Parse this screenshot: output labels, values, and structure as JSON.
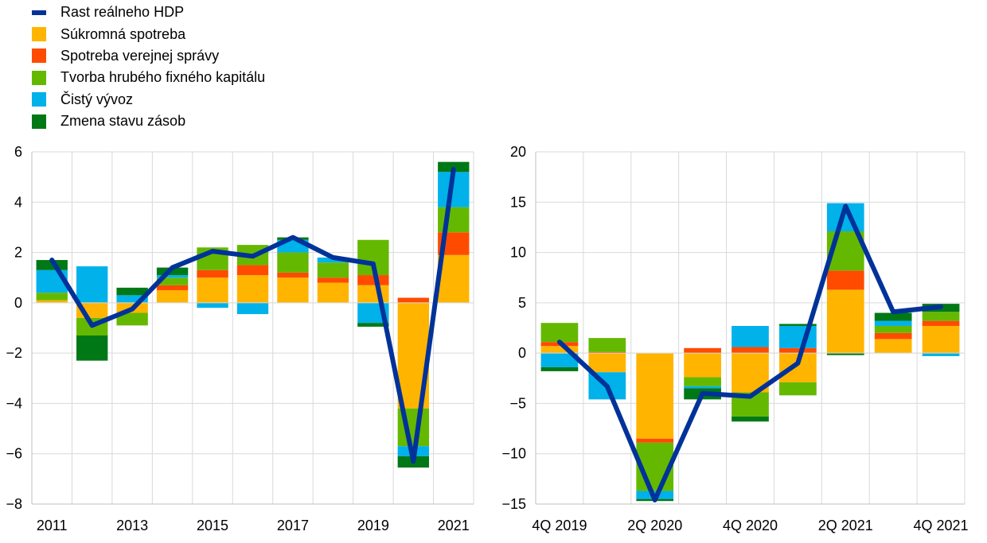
{
  "legend": {
    "items": [
      {
        "label": "Rast reálneho HDP",
        "color": "#003299",
        "kind": "line"
      },
      {
        "label": "Súkromná spotreba",
        "color": "#FFB400",
        "kind": "bar"
      },
      {
        "label": "Spotreba verejnej správy",
        "color": "#FF4B00",
        "kind": "bar"
      },
      {
        "label": "Tvorba hrubého fixného kapitálu",
        "color": "#65B800",
        "kind": "bar"
      },
      {
        "label": "Čistý vývoz",
        "color": "#00B1EA",
        "kind": "bar"
      },
      {
        "label": "Zmena stavu zásob",
        "color": "#007816",
        "kind": "bar"
      }
    ]
  },
  "chart_data": [
    {
      "type": "bar",
      "stacked": true,
      "categories": [
        "2011",
        "2012",
        "2013",
        "2014",
        "2015",
        "2016",
        "2017",
        "2018",
        "2019",
        "2020",
        "2021"
      ],
      "x_tick_labels": [
        "2011",
        "2013",
        "2015",
        "2017",
        "2019",
        "2021"
      ],
      "ylim": [
        -8,
        6
      ],
      "y_ticks": [
        -8,
        -6,
        -4,
        -2,
        0,
        2,
        4,
        6
      ],
      "grid": true,
      "series": [
        {
          "name": "Súkromná spotreba",
          "color": "#FFB400",
          "values": [
            0.1,
            -0.6,
            -0.4,
            0.5,
            1.0,
            1.1,
            1.0,
            0.8,
            0.7,
            -4.2,
            1.9
          ]
        },
        {
          "name": "Spotreba verejnej správy",
          "color": "#FF4B00",
          "values": [
            0.0,
            0.0,
            0.0,
            0.2,
            0.3,
            0.4,
            0.2,
            0.2,
            0.4,
            0.2,
            0.9
          ]
        },
        {
          "name": "Tvorba hrubého fixného kapitálu",
          "color": "#65B800",
          "values": [
            0.3,
            -0.7,
            -0.5,
            0.3,
            0.9,
            0.8,
            0.8,
            0.6,
            1.4,
            -1.5,
            1.0
          ]
        },
        {
          "name": "Čistý vývoz",
          "color": "#00B1EA",
          "values": [
            0.9,
            1.45,
            0.3,
            0.1,
            -0.2,
            -0.45,
            0.5,
            0.2,
            -0.8,
            -0.4,
            1.4
          ]
        },
        {
          "name": "Zmena stavu zásob",
          "color": "#007816",
          "values": [
            0.4,
            -1.0,
            0.3,
            0.3,
            0.0,
            0.0,
            0.1,
            0.0,
            -0.15,
            -0.45,
            0.4
          ]
        }
      ],
      "line": {
        "name": "Rast reálneho HDP",
        "color": "#003299",
        "values": [
          1.7,
          -0.9,
          -0.25,
          1.4,
          2.05,
          1.85,
          2.6,
          1.8,
          1.55,
          -6.3,
          5.3
        ]
      }
    },
    {
      "type": "bar",
      "stacked": true,
      "categories": [
        "4Q 2019",
        "1Q 2020",
        "2Q 2020",
        "3Q 2020",
        "4Q 2020",
        "1Q 2021",
        "2Q 2021",
        "3Q 2021",
        "4Q 2021"
      ],
      "x_tick_labels": [
        "4Q 2019",
        "2Q 2020",
        "4Q 2020",
        "2Q 2021",
        "4Q 2021"
      ],
      "ylim": [
        -15,
        20
      ],
      "y_ticks": [
        -15,
        -10,
        -5,
        0,
        5,
        10,
        15,
        20
      ],
      "grid": true,
      "series": [
        {
          "name": "Súkromná spotreba",
          "color": "#FFB400",
          "values": [
            0.7,
            -1.9,
            -8.5,
            -2.4,
            -3.9,
            -2.9,
            6.3,
            1.4,
            2.7
          ]
        },
        {
          "name": "Spotreba verejnej správy",
          "color": "#FF4B00",
          "values": [
            0.4,
            0.1,
            -0.4,
            0.5,
            0.6,
            0.5,
            1.9,
            0.6,
            0.5
          ]
        },
        {
          "name": "Tvorba hrubého fixného kapitálu",
          "color": "#65B800",
          "values": [
            1.9,
            1.4,
            -4.8,
            -0.9,
            -2.4,
            -1.3,
            3.9,
            0.7,
            0.9
          ]
        },
        {
          "name": "Čistý vývoz",
          "color": "#00B1EA",
          "values": [
            -1.4,
            -2.7,
            -0.8,
            -0.2,
            2.1,
            2.2,
            2.8,
            0.5,
            -0.3
          ]
        },
        {
          "name": "Zmena stavu zásob",
          "color": "#007816",
          "values": [
            -0.4,
            0.0,
            -0.2,
            -1.1,
            -0.5,
            0.2,
            -0.2,
            0.8,
            0.8
          ]
        }
      ],
      "line": {
        "name": "Rast reálneho HDP",
        "color": "#003299",
        "values": [
          1.1,
          -3.3,
          -14.6,
          -4.0,
          -4.3,
          -1.0,
          14.6,
          4.1,
          4.6
        ]
      }
    }
  ]
}
